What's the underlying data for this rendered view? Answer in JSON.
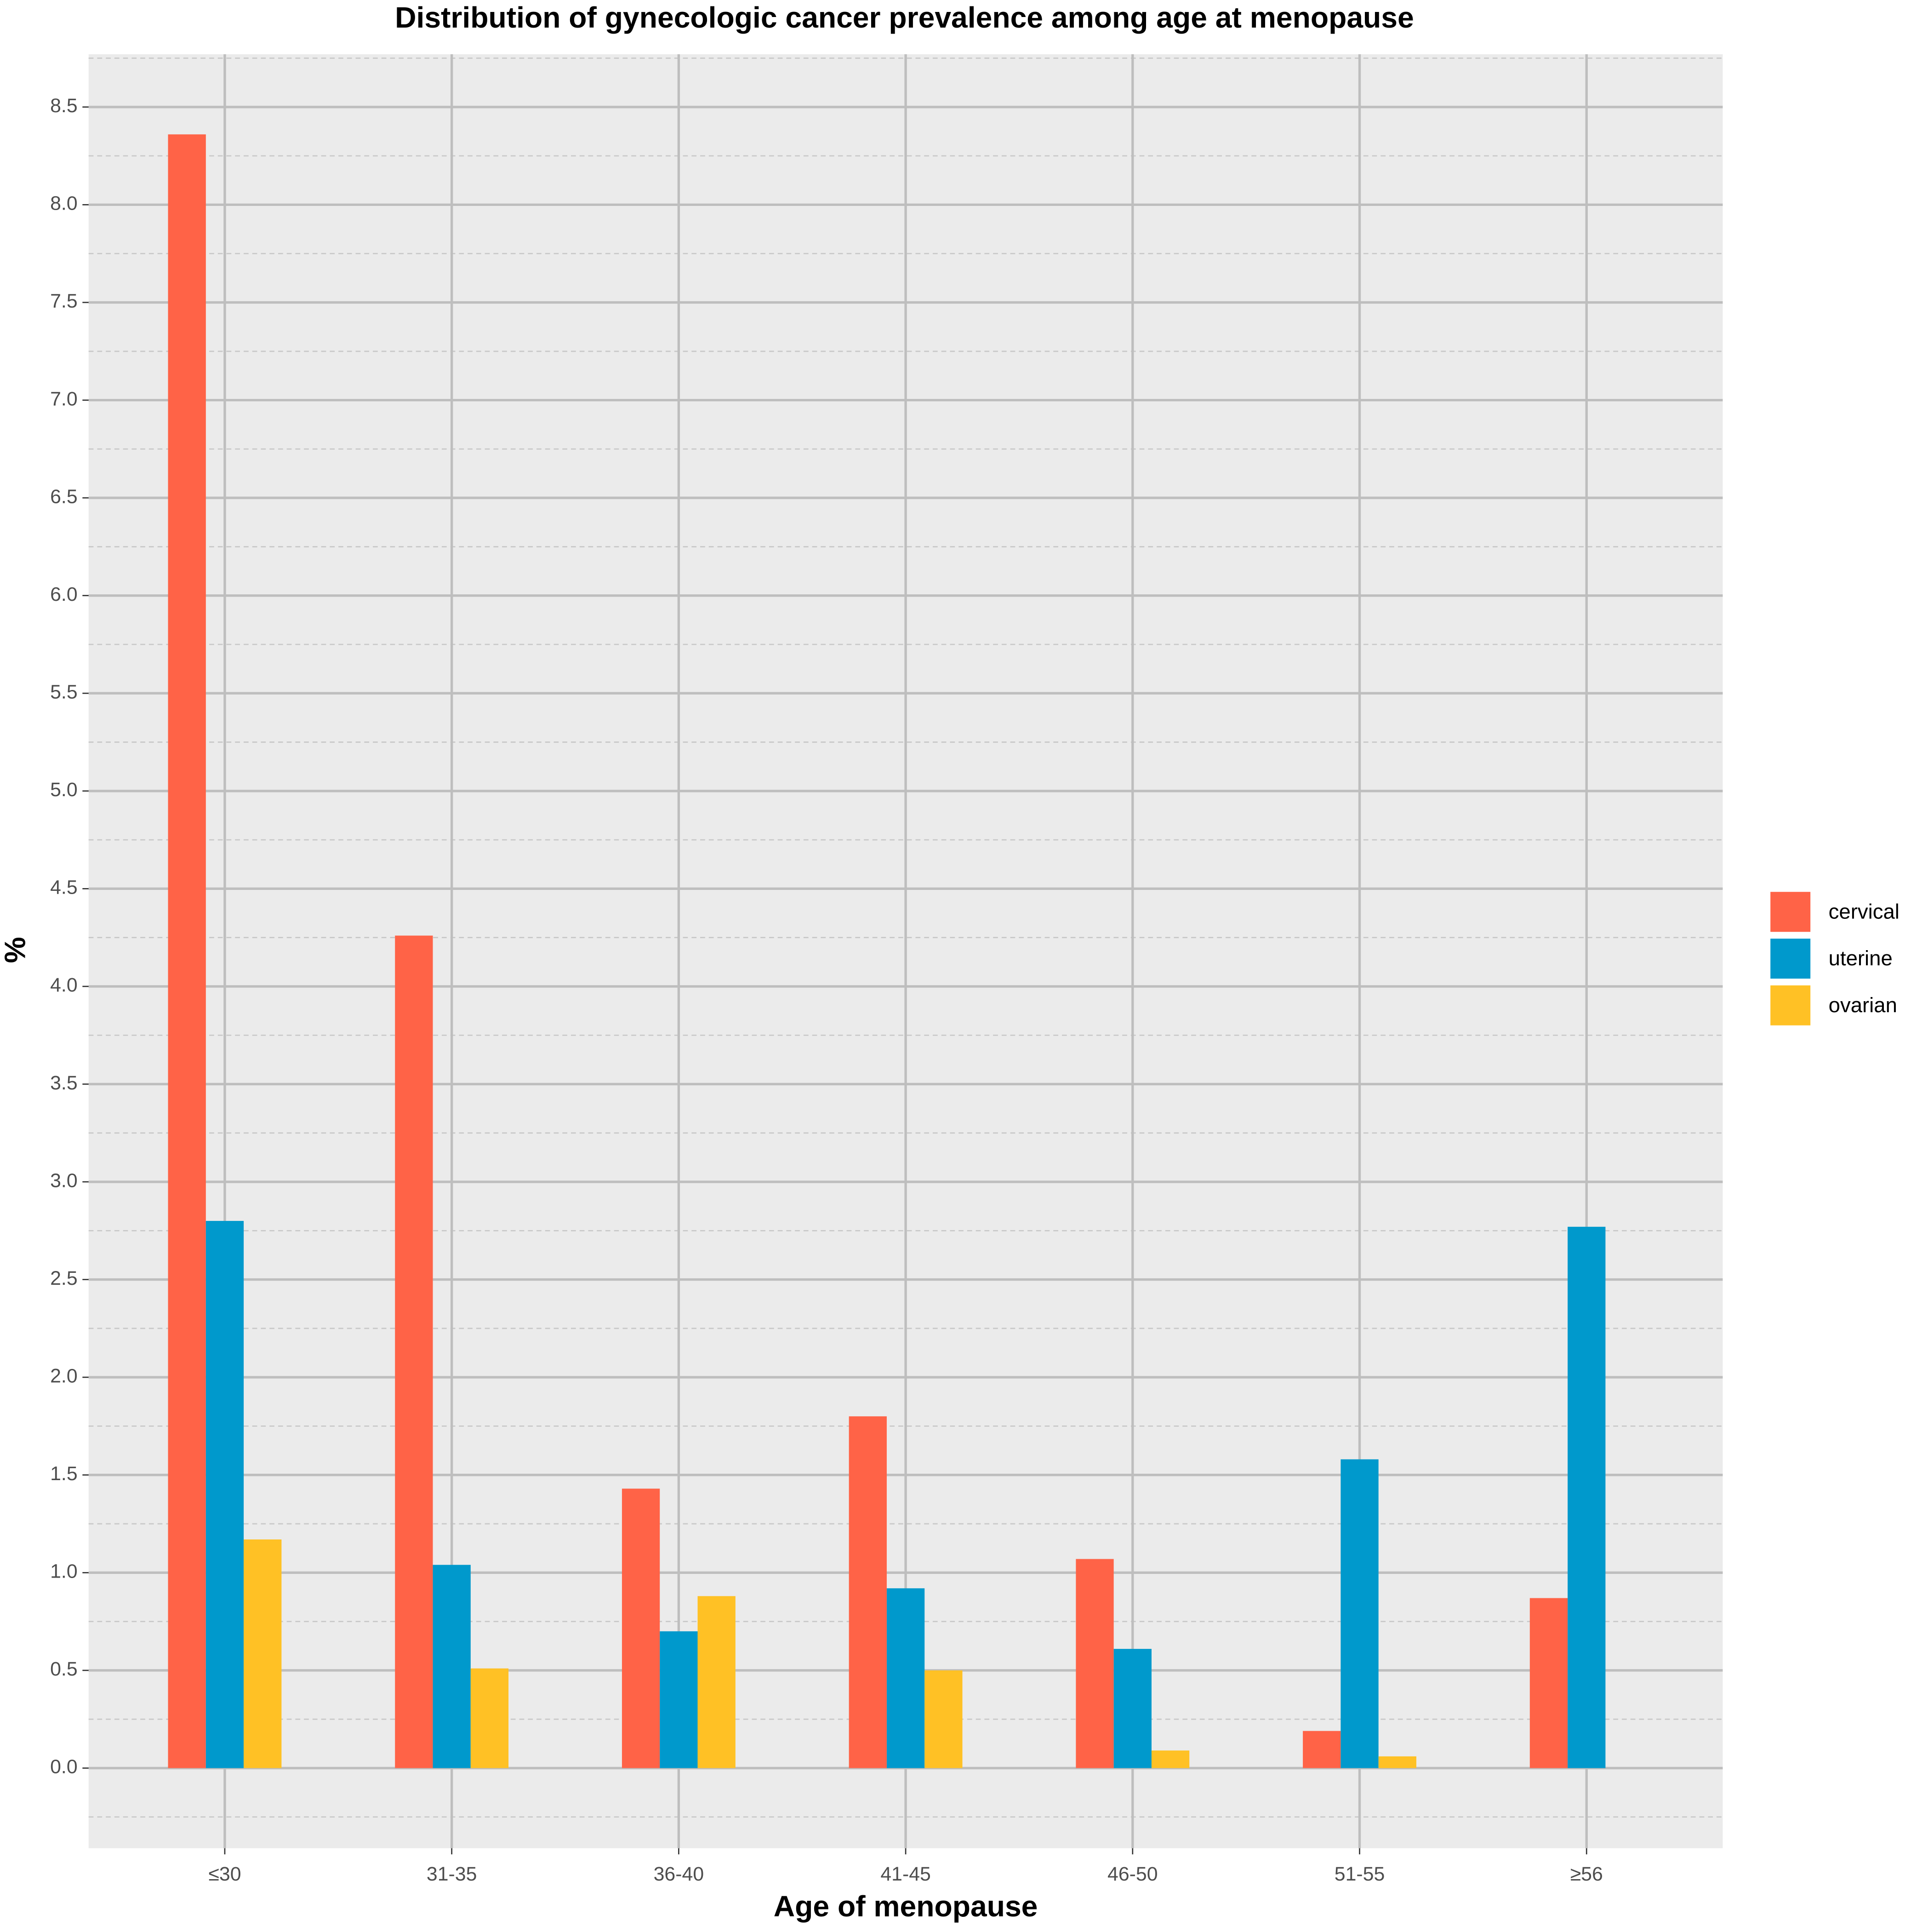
{
  "chart_data": {
    "type": "bar",
    "title": "Distribution of gynecologic cancer prevalence among age at menopause",
    "x_label": "Age of menopause",
    "y_label": "%",
    "categories": [
      "≤30",
      "31-35",
      "36-40",
      "41-45",
      "46-50",
      "51-55",
      "≥56"
    ],
    "series": [
      {
        "name": "cervical",
        "color": "#FF6347",
        "values": [
          8.36,
          4.26,
          1.43,
          1.8,
          1.07,
          0.19,
          0.87
        ]
      },
      {
        "name": "uterine",
        "color": "#0099CC",
        "values": [
          2.8,
          1.04,
          0.7,
          0.92,
          0.61,
          1.58,
          2.77
        ]
      },
      {
        "name": "ovarian",
        "color": "#FFC125",
        "values": [
          1.17,
          0.51,
          0.88,
          0.5,
          0.09,
          0.06,
          null
        ]
      }
    ],
    "ylim": [
      -0.41,
      8.77
    ],
    "yticks": [
      {
        "value": 0,
        "label": "0.0"
      },
      0.5,
      {
        "value": 1,
        "label": "1.0"
      },
      1.5,
      {
        "value": 2,
        "label": "2.0"
      },
      2.5,
      {
        "value": 3,
        "label": "3.0"
      },
      3.5,
      {
        "value": 4,
        "label": "4.0"
      },
      4.5,
      {
        "value": 5,
        "label": "5.0"
      },
      5.5,
      {
        "value": 6,
        "label": "6.0"
      },
      6.5,
      {
        "value": 7,
        "label": "7.0"
      },
      7.5,
      {
        "value": 8,
        "label": "8.0"
      },
      8.5
    ],
    "yminorticks": [
      -0.25,
      0.25,
      0.75,
      1.25,
      1.75,
      2.25,
      2.75,
      3.25,
      3.75,
      4.25,
      4.75,
      5.25,
      5.75,
      6.25,
      6.75,
      7.25,
      7.75,
      8.25,
      8.75
    ],
    "grid": true,
    "legend": "right"
  }
}
